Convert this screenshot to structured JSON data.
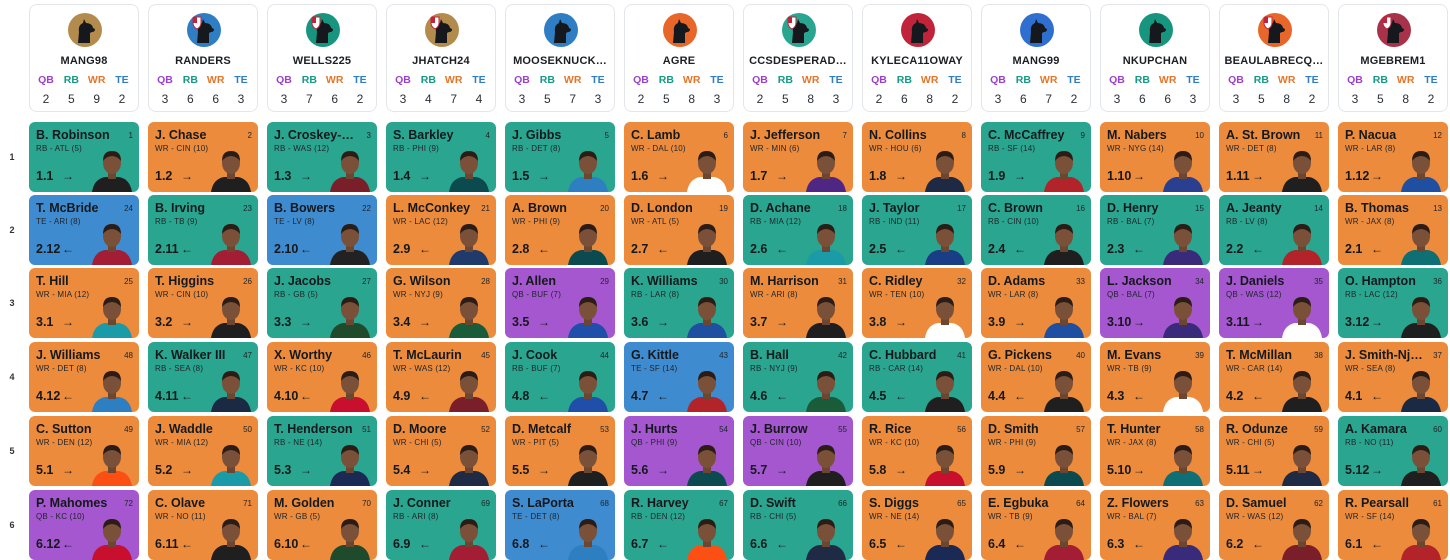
{
  "colors": {
    "wr": "#ec8b3c",
    "rb": "#2aa58f",
    "qb": "#a457cf",
    "te": "#3f8bd0"
  },
  "position_labels": [
    "QB",
    "RB",
    "WR",
    "TE"
  ],
  "round_labels": [
    "1",
    "2",
    "3",
    "4",
    "5",
    "6"
  ],
  "teams": [
    {
      "name": "MANG98",
      "logo_bg": "#b38b4d",
      "logo_icon": "dog-silhouette-icon",
      "counts": [
        "2",
        "5",
        "9",
        "2"
      ]
    },
    {
      "name": "RANDERS",
      "logo_bg": "#2f7ec4",
      "logo_icon": "dog-shield-icon",
      "counts": [
        "3",
        "6",
        "6",
        "3"
      ]
    },
    {
      "name": "WELLS225",
      "logo_bg": "#17957e",
      "logo_icon": "dog-shield-icon",
      "counts": [
        "3",
        "7",
        "6",
        "2"
      ]
    },
    {
      "name": "JHATCH24",
      "logo_bg": "#b38b4d",
      "logo_icon": "dog-shield-icon",
      "counts": [
        "3",
        "4",
        "7",
        "4"
      ]
    },
    {
      "name": "MOOSEKNUCK…",
      "logo_bg": "#2f7ec4",
      "logo_icon": "dog-silhouette-icon",
      "counts": [
        "3",
        "5",
        "7",
        "3"
      ]
    },
    {
      "name": "AGRE",
      "logo_bg": "#e8662a",
      "logo_icon": "dog-silhouette-icon",
      "counts": [
        "2",
        "5",
        "8",
        "3"
      ]
    },
    {
      "name": "CCSDESPERAD…",
      "logo_bg": "#2aa58f",
      "logo_icon": "dog-shield-icon",
      "counts": [
        "2",
        "5",
        "8",
        "3"
      ]
    },
    {
      "name": "KYLECA11OWAY",
      "logo_bg": "#c0243a",
      "logo_icon": "dog-silhouette-icon",
      "counts": [
        "2",
        "6",
        "8",
        "2"
      ]
    },
    {
      "name": "MANG99",
      "logo_bg": "#2f6fd0",
      "logo_icon": "dog-silhouette-icon",
      "counts": [
        "3",
        "6",
        "7",
        "2"
      ]
    },
    {
      "name": "NKUPCHAN",
      "logo_bg": "#17957e",
      "logo_icon": "dog-silhouette-icon",
      "counts": [
        "3",
        "6",
        "6",
        "3"
      ]
    },
    {
      "name": "BEAULABRECQ…",
      "logo_bg": "#e8662a",
      "logo_icon": "dog-shield-icon",
      "counts": [
        "3",
        "5",
        "8",
        "2"
      ]
    },
    {
      "name": "MGEBREM1",
      "logo_bg": "#a8324a",
      "logo_icon": "dog-shield-icon",
      "counts": [
        "3",
        "5",
        "8",
        "2"
      ]
    }
  ],
  "picks": [
    [
      {
        "name": "B. Robinson",
        "num": "1",
        "meta": "RB - ATL (5)",
        "slot": "1.1",
        "arrow": "→",
        "pos": "rb",
        "jersey": "#1f1f1f"
      },
      {
        "name": "J. Chase",
        "num": "2",
        "meta": "WR - CIN (10)",
        "slot": "1.2",
        "arrow": "→",
        "pos": "wr",
        "jersey": "#1f1f1f"
      },
      {
        "name": "J. Croskey-M…",
        "num": "3",
        "meta": "RB - WAS (12)",
        "slot": "1.3",
        "arrow": "→",
        "pos": "rb",
        "jersey": "#7a1e2a"
      },
      {
        "name": "S. Barkley",
        "num": "4",
        "meta": "RB - PHI (9)",
        "slot": "1.4",
        "arrow": "→",
        "pos": "rb",
        "jersey": "#0b4a4f"
      },
      {
        "name": "J. Gibbs",
        "num": "5",
        "meta": "RB - DET (8)",
        "slot": "1.5",
        "arrow": "→",
        "pos": "rb",
        "jersey": "#2d7fc1"
      },
      {
        "name": "C. Lamb",
        "num": "6",
        "meta": "WR - DAL (10)",
        "slot": "1.6",
        "arrow": "→",
        "pos": "wr",
        "jersey": "#ffffff"
      },
      {
        "name": "J. Jefferson",
        "num": "7",
        "meta": "WR - MIN (6)",
        "slot": "1.7",
        "arrow": "→",
        "pos": "wr",
        "jersey": "#4f2683"
      },
      {
        "name": "N. Collins",
        "num": "8",
        "meta": "WR - HOU (6)",
        "slot": "1.8",
        "arrow": "→",
        "pos": "wr",
        "jersey": "#1e2a44"
      },
      {
        "name": "C. McCaffrey",
        "num": "9",
        "meta": "RB - SF (14)",
        "slot": "1.9",
        "arrow": "→",
        "pos": "rb",
        "jersey": "#b3242a"
      },
      {
        "name": "M. Nabers",
        "num": "10",
        "meta": "WR - NYG (14)",
        "slot": "1.10",
        "arrow": "→",
        "pos": "wr",
        "jersey": "#2a3f8f"
      },
      {
        "name": "A. St. Brown",
        "num": "11",
        "meta": "WR - DET (8)",
        "slot": "1.11",
        "arrow": "→",
        "pos": "wr",
        "jersey": "#1f1f1f"
      },
      {
        "name": "P. Nacua",
        "num": "12",
        "meta": "WR - LAR (8)",
        "slot": "1.12",
        "arrow": "→",
        "pos": "wr",
        "jersey": "#1e4fa0"
      }
    ],
    [
      {
        "name": "T. McBride",
        "num": "24",
        "meta": "TE - ARI (8)",
        "slot": "2.12",
        "arrow": "←",
        "pos": "te",
        "jersey": "#a31d35"
      },
      {
        "name": "B. Irving",
        "num": "23",
        "meta": "RB - TB (9)",
        "slot": "2.11",
        "arrow": "←",
        "pos": "rb",
        "jersey": "#a31d35"
      },
      {
        "name": "B. Bowers",
        "num": "22",
        "meta": "TE - LV (8)",
        "slot": "2.10",
        "arrow": "←",
        "pos": "te",
        "jersey": "#222222"
      },
      {
        "name": "L. McConkey",
        "num": "21",
        "meta": "WR - LAC (12)",
        "slot": "2.9",
        "arrow": "←",
        "pos": "wr",
        "jersey": "#1f3a6b"
      },
      {
        "name": "A. Brown",
        "num": "20",
        "meta": "WR - PHI (9)",
        "slot": "2.8",
        "arrow": "←",
        "pos": "wr",
        "jersey": "#0b4a4f"
      },
      {
        "name": "D. London",
        "num": "19",
        "meta": "WR - ATL (5)",
        "slot": "2.7",
        "arrow": "←",
        "pos": "wr",
        "jersey": "#1f1f1f"
      },
      {
        "name": "D. Achane",
        "num": "18",
        "meta": "RB - MIA (12)",
        "slot": "2.6",
        "arrow": "←",
        "pos": "rb",
        "jersey": "#1b9aa8"
      },
      {
        "name": "J. Taylor",
        "num": "17",
        "meta": "RB - IND (11)",
        "slot": "2.5",
        "arrow": "←",
        "pos": "rb",
        "jersey": "#1a3e85"
      },
      {
        "name": "C. Brown",
        "num": "16",
        "meta": "RB - CIN (10)",
        "slot": "2.4",
        "arrow": "←",
        "pos": "rb",
        "jersey": "#1f1f1f"
      },
      {
        "name": "D. Henry",
        "num": "15",
        "meta": "RB - BAL (7)",
        "slot": "2.3",
        "arrow": "←",
        "pos": "rb",
        "jersey": "#3a2a7a"
      },
      {
        "name": "A. Jeanty",
        "num": "14",
        "meta": "RB - LV (8)",
        "slot": "2.2",
        "arrow": "←",
        "pos": "rb",
        "jersey": "#b3242a"
      },
      {
        "name": "B. Thomas",
        "num": "13",
        "meta": "WR - JAX (8)",
        "slot": "2.1",
        "arrow": "←",
        "pos": "wr",
        "jersey": "#0e6f75"
      }
    ],
    [
      {
        "name": "T. Hill",
        "num": "25",
        "meta": "WR - MIA (12)",
        "slot": "3.1",
        "arrow": "→",
        "pos": "wr",
        "jersey": "#1b9aa8"
      },
      {
        "name": "T. Higgins",
        "num": "26",
        "meta": "WR - CIN (10)",
        "slot": "3.2",
        "arrow": "→",
        "pos": "wr",
        "jersey": "#1f1f1f"
      },
      {
        "name": "J. Jacobs",
        "num": "27",
        "meta": "RB - GB (5)",
        "slot": "3.3",
        "arrow": "→",
        "pos": "rb",
        "jersey": "#1f4a2c"
      },
      {
        "name": "G. Wilson",
        "num": "28",
        "meta": "WR - NYJ (9)",
        "slot": "3.4",
        "arrow": "→",
        "pos": "wr",
        "jersey": "#1a5b3a"
      },
      {
        "name": "J. Allen",
        "num": "29",
        "meta": "QB - BUF (7)",
        "slot": "3.5",
        "arrow": "→",
        "pos": "qb",
        "jersey": "#1f4fa8"
      },
      {
        "name": "K. Williams",
        "num": "30",
        "meta": "RB - LAR (8)",
        "slot": "3.6",
        "arrow": "→",
        "pos": "rb",
        "jersey": "#1e4fa0"
      },
      {
        "name": "M. Harrison",
        "num": "31",
        "meta": "WR - ARI (8)",
        "slot": "3.7",
        "arrow": "→",
        "pos": "wr",
        "jersey": "#1f1f1f"
      },
      {
        "name": "C. Ridley",
        "num": "32",
        "meta": "WR - TEN (10)",
        "slot": "3.8",
        "arrow": "→",
        "pos": "wr",
        "jersey": "#ffffff"
      },
      {
        "name": "D. Adams",
        "num": "33",
        "meta": "WR - LAR (8)",
        "slot": "3.9",
        "arrow": "→",
        "pos": "wr",
        "jersey": "#1e4fa0"
      },
      {
        "name": "L. Jackson",
        "num": "34",
        "meta": "QB - BAL (7)",
        "slot": "3.10",
        "arrow": "→",
        "pos": "qb",
        "jersey": "#3a2a7a"
      },
      {
        "name": "J. Daniels",
        "num": "35",
        "meta": "QB - WAS (12)",
        "slot": "3.11",
        "arrow": "→",
        "pos": "qb",
        "jersey": "#ffffff"
      },
      {
        "name": "O. Hampton",
        "num": "36",
        "meta": "RB - LAC (12)",
        "slot": "3.12",
        "arrow": "→",
        "pos": "rb",
        "jersey": "#1f1f1f"
      }
    ],
    [
      {
        "name": "J. Williams",
        "num": "48",
        "meta": "WR - DET (8)",
        "slot": "4.12",
        "arrow": "←",
        "pos": "wr",
        "jersey": "#2d7fc1"
      },
      {
        "name": "K. Walker III",
        "num": "47",
        "meta": "RB - SEA (8)",
        "slot": "4.11",
        "arrow": "←",
        "pos": "rb",
        "jersey": "#1a2a44"
      },
      {
        "name": "X. Worthy",
        "num": "46",
        "meta": "WR - KC (10)",
        "slot": "4.10",
        "arrow": "←",
        "pos": "wr",
        "jersey": "#c8102e"
      },
      {
        "name": "T. McLaurin",
        "num": "45",
        "meta": "WR - WAS (12)",
        "slot": "4.9",
        "arrow": "←",
        "pos": "wr",
        "jersey": "#7a1e2a"
      },
      {
        "name": "J. Cook",
        "num": "44",
        "meta": "RB - BUF (7)",
        "slot": "4.8",
        "arrow": "←",
        "pos": "rb",
        "jersey": "#1f4fa8"
      },
      {
        "name": "G. Kittle",
        "num": "43",
        "meta": "TE - SF (14)",
        "slot": "4.7",
        "arrow": "←",
        "pos": "te",
        "jersey": "#b3242a"
      },
      {
        "name": "B. Hall",
        "num": "42",
        "meta": "RB - NYJ (9)",
        "slot": "4.6",
        "arrow": "←",
        "pos": "rb",
        "jersey": "#1a5b3a"
      },
      {
        "name": "C. Hubbard",
        "num": "41",
        "meta": "RB - CAR (14)",
        "slot": "4.5",
        "arrow": "←",
        "pos": "rb",
        "jersey": "#1f1f1f"
      },
      {
        "name": "G. Pickens",
        "num": "40",
        "meta": "WR - DAL (10)",
        "slot": "4.4",
        "arrow": "←",
        "pos": "wr",
        "jersey": "#1f1f1f"
      },
      {
        "name": "M. Evans",
        "num": "39",
        "meta": "WR - TB (9)",
        "slot": "4.3",
        "arrow": "←",
        "pos": "wr",
        "jersey": "#ffffff"
      },
      {
        "name": "T. McMillan",
        "num": "38",
        "meta": "WR - CAR (14)",
        "slot": "4.2",
        "arrow": "←",
        "pos": "wr",
        "jersey": "#1f1f1f"
      },
      {
        "name": "J. Smith-Njig…",
        "num": "37",
        "meta": "WR - SEA (8)",
        "slot": "4.1",
        "arrow": "←",
        "pos": "wr",
        "jersey": "#1a2a44"
      }
    ],
    [
      {
        "name": "C. Sutton",
        "num": "49",
        "meta": "WR - DEN (12)",
        "slot": "5.1",
        "arrow": "→",
        "pos": "wr",
        "jersey": "#fb4f14"
      },
      {
        "name": "J. Waddle",
        "num": "50",
        "meta": "WR - MIA (12)",
        "slot": "5.2",
        "arrow": "→",
        "pos": "wr",
        "jersey": "#1b9aa8"
      },
      {
        "name": "T. Henderson",
        "num": "51",
        "meta": "RB - NE (14)",
        "slot": "5.3",
        "arrow": "→",
        "pos": "rb",
        "jersey": "#1a2a55"
      },
      {
        "name": "D. Moore",
        "num": "52",
        "meta": "WR - CHI (5)",
        "slot": "5.4",
        "arrow": "→",
        "pos": "wr",
        "jersey": "#1f2a44"
      },
      {
        "name": "D. Metcalf",
        "num": "53",
        "meta": "WR - PIT (5)",
        "slot": "5.5",
        "arrow": "→",
        "pos": "wr",
        "jersey": "#1f1f1f"
      },
      {
        "name": "J. Hurts",
        "num": "54",
        "meta": "QB - PHI (9)",
        "slot": "5.6",
        "arrow": "→",
        "pos": "qb",
        "jersey": "#0b4a4f"
      },
      {
        "name": "J. Burrow",
        "num": "55",
        "meta": "QB - CIN (10)",
        "slot": "5.7",
        "arrow": "→",
        "pos": "qb",
        "jersey": "#1f1f1f"
      },
      {
        "name": "R. Rice",
        "num": "56",
        "meta": "WR - KC (10)",
        "slot": "5.8",
        "arrow": "→",
        "pos": "wr",
        "jersey": "#c8102e"
      },
      {
        "name": "D. Smith",
        "num": "57",
        "meta": "WR - PHI (9)",
        "slot": "5.9",
        "arrow": "→",
        "pos": "wr",
        "jersey": "#0b4a4f"
      },
      {
        "name": "T. Hunter",
        "num": "58",
        "meta": "WR - JAX (8)",
        "slot": "5.10",
        "arrow": "→",
        "pos": "wr",
        "jersey": "#0e6f75"
      },
      {
        "name": "R. Odunze",
        "num": "59",
        "meta": "WR - CHI (5)",
        "slot": "5.11",
        "arrow": "→",
        "pos": "wr",
        "jersey": "#1f2a44"
      },
      {
        "name": "A. Kamara",
        "num": "60",
        "meta": "RB - NO (11)",
        "slot": "5.12",
        "arrow": "→",
        "pos": "rb",
        "jersey": "#1f1f1f"
      }
    ],
    [
      {
        "name": "P. Mahomes",
        "num": "72",
        "meta": "QB - KC (10)",
        "slot": "6.12",
        "arrow": "←",
        "pos": "qb",
        "jersey": "#c8102e"
      },
      {
        "name": "C. Olave",
        "num": "71",
        "meta": "WR - NO (11)",
        "slot": "6.11",
        "arrow": "←",
        "pos": "wr",
        "jersey": "#1f1f1f"
      },
      {
        "name": "M. Golden",
        "num": "70",
        "meta": "WR - GB (5)",
        "slot": "6.10",
        "arrow": "←",
        "pos": "wr",
        "jersey": "#1f4a2c"
      },
      {
        "name": "J. Conner",
        "num": "69",
        "meta": "RB - ARI (8)",
        "slot": "6.9",
        "arrow": "←",
        "pos": "rb",
        "jersey": "#a31d35"
      },
      {
        "name": "S. LaPorta",
        "num": "68",
        "meta": "TE - DET (8)",
        "slot": "6.8",
        "arrow": "←",
        "pos": "te",
        "jersey": "#2d7fc1"
      },
      {
        "name": "R. Harvey",
        "num": "67",
        "meta": "RB - DEN (12)",
        "slot": "6.7",
        "arrow": "←",
        "pos": "rb",
        "jersey": "#fb4f14"
      },
      {
        "name": "D. Swift",
        "num": "66",
        "meta": "RB - CHI (5)",
        "slot": "6.6",
        "arrow": "←",
        "pos": "rb",
        "jersey": "#1f2a44"
      },
      {
        "name": "S. Diggs",
        "num": "65",
        "meta": "WR - NE (14)",
        "slot": "6.5",
        "arrow": "←",
        "pos": "wr",
        "jersey": "#1a2a55"
      },
      {
        "name": "E. Egbuka",
        "num": "64",
        "meta": "WR - TB (9)",
        "slot": "6.4",
        "arrow": "←",
        "pos": "wr",
        "jersey": "#a31d35"
      },
      {
        "name": "Z. Flowers",
        "num": "63",
        "meta": "WR - BAL (7)",
        "slot": "6.3",
        "arrow": "←",
        "pos": "wr",
        "jersey": "#3a2a7a"
      },
      {
        "name": "D. Samuel",
        "num": "62",
        "meta": "WR - WAS (12)",
        "slot": "6.2",
        "arrow": "←",
        "pos": "wr",
        "jersey": "#7a1e2a"
      },
      {
        "name": "R. Pearsall",
        "num": "61",
        "meta": "WR - SF (14)",
        "slot": "6.1",
        "arrow": "←",
        "pos": "wr",
        "jersey": "#b3242a"
      }
    ]
  ]
}
